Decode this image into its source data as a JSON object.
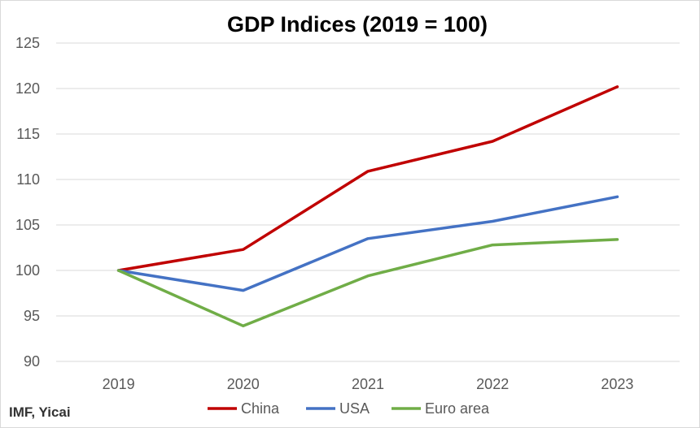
{
  "chart_data": {
    "type": "line",
    "title": "GDP Indices (2019 = 100)",
    "xlabel": "",
    "ylabel": "",
    "categories": [
      "2019",
      "2020",
      "2021",
      "2022",
      "2023"
    ],
    "ylim": [
      90,
      125
    ],
    "yticks": [
      "90",
      "95",
      "100",
      "105",
      "110",
      "115",
      "120",
      "125"
    ],
    "grid": true,
    "legend_position": "bottom",
    "series": [
      {
        "name": "China",
        "color": "#c00000",
        "values": [
          100.0,
          102.3,
          110.9,
          114.2,
          120.2
        ]
      },
      {
        "name": "USA",
        "color": "#4472c4",
        "values": [
          100.0,
          97.8,
          103.5,
          105.4,
          108.1
        ]
      },
      {
        "name": "Euro area",
        "color": "#70ad47",
        "values": [
          100.0,
          93.9,
          99.4,
          102.8,
          103.4
        ]
      }
    ]
  },
  "source": "IMF, Yicai"
}
